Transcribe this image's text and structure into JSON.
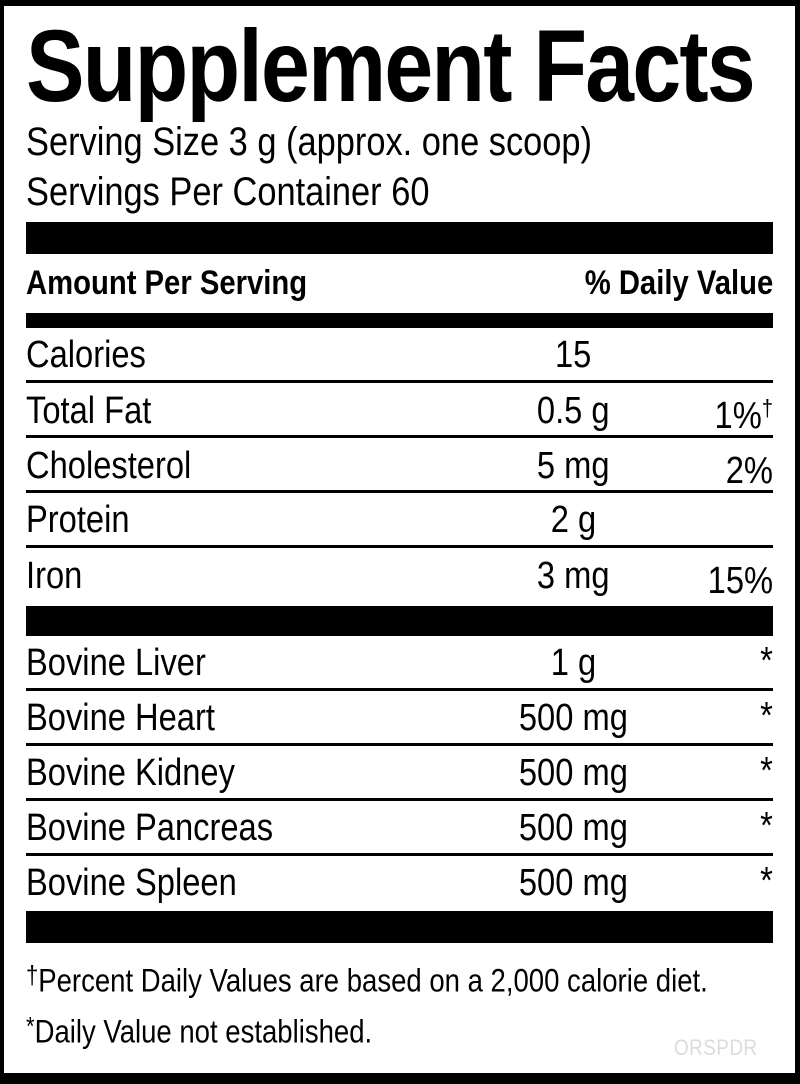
{
  "label": {
    "title": "Supplement Facts",
    "serving_size": "Serving Size 3 g (approx. one scoop)",
    "servings_per_container": "Servings Per Container 60",
    "header": {
      "amount_per_serving": "Amount Per Serving",
      "daily_value": "% Daily Value"
    },
    "nutrients": [
      {
        "name": "Calories",
        "amount": "15",
        "dv": "",
        "dv_sup": ""
      },
      {
        "name": "Total Fat",
        "amount": "0.5 g",
        "dv": "1%",
        "dv_sup": "†"
      },
      {
        "name": "Cholesterol",
        "amount": "5 mg",
        "dv": "2%",
        "dv_sup": ""
      },
      {
        "name": "Protein",
        "amount": "2 g",
        "dv": "",
        "dv_sup": ""
      },
      {
        "name": "Iron",
        "amount": "3 mg",
        "dv": "15%",
        "dv_sup": ""
      }
    ],
    "ingredients": [
      {
        "name": "Bovine Liver",
        "amount": "1 g",
        "dv": "*"
      },
      {
        "name": "Bovine Heart",
        "amount": "500 mg",
        "dv": "*"
      },
      {
        "name": "Bovine Kidney",
        "amount": "500 mg",
        "dv": "*"
      },
      {
        "name": "Bovine Pancreas",
        "amount": "500 mg",
        "dv": "*"
      },
      {
        "name": "Bovine Spleen",
        "amount": "500 mg",
        "dv": "*"
      }
    ],
    "footnotes": [
      {
        "marker": "†",
        "text": "Percent Daily Values are based on a 2,000 calorie diet."
      },
      {
        "marker": "*",
        "text": "Daily Value not established."
      }
    ],
    "watermark": "ORSPDR",
    "colors": {
      "ink": "#000000",
      "background": "#ffffff",
      "watermark": "#dcdcdc"
    }
  }
}
